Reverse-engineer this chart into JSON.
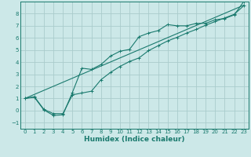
{
  "title": "",
  "xlabel": "Humidex (Indice chaleur)",
  "bg_color": "#cce8e8",
  "grid_color": "#aacccc",
  "line_color": "#1a7a6e",
  "xlim": [
    -0.5,
    23.5
  ],
  "ylim": [
    -1.5,
    9.0
  ],
  "yticks": [
    -1,
    0,
    1,
    2,
    3,
    4,
    5,
    6,
    7,
    8
  ],
  "xticks": [
    0,
    1,
    2,
    3,
    4,
    5,
    6,
    7,
    8,
    9,
    10,
    11,
    12,
    13,
    14,
    15,
    16,
    17,
    18,
    19,
    20,
    21,
    22,
    23
  ],
  "series1_x": [
    0,
    1,
    2,
    3,
    4,
    5,
    6,
    7,
    8,
    9,
    10,
    11,
    12,
    13,
    14,
    15,
    16,
    17,
    18,
    19,
    20,
    21,
    22,
    23
  ],
  "series1_y": [
    1.0,
    1.1,
    0.05,
    -0.4,
    -0.35,
    1.5,
    3.5,
    3.4,
    3.8,
    4.5,
    4.9,
    5.05,
    6.1,
    6.4,
    6.6,
    7.1,
    7.0,
    7.0,
    7.2,
    7.2,
    7.5,
    7.6,
    7.9,
    9.0
  ],
  "series2_x": [
    0,
    1,
    2,
    3,
    4,
    5,
    6,
    7,
    8,
    9,
    10,
    11,
    12,
    13,
    14,
    15,
    16,
    17,
    18,
    19,
    20,
    21,
    22,
    23
  ],
  "series2_y": [
    1.0,
    1.15,
    0.1,
    -0.25,
    -0.25,
    1.3,
    1.45,
    1.6,
    2.55,
    3.15,
    3.65,
    4.05,
    4.35,
    4.95,
    5.35,
    5.75,
    6.05,
    6.4,
    6.7,
    7.05,
    7.35,
    7.65,
    7.95,
    8.65
  ],
  "series3_x": [
    0,
    23
  ],
  "series3_y": [
    1.0,
    8.7
  ]
}
